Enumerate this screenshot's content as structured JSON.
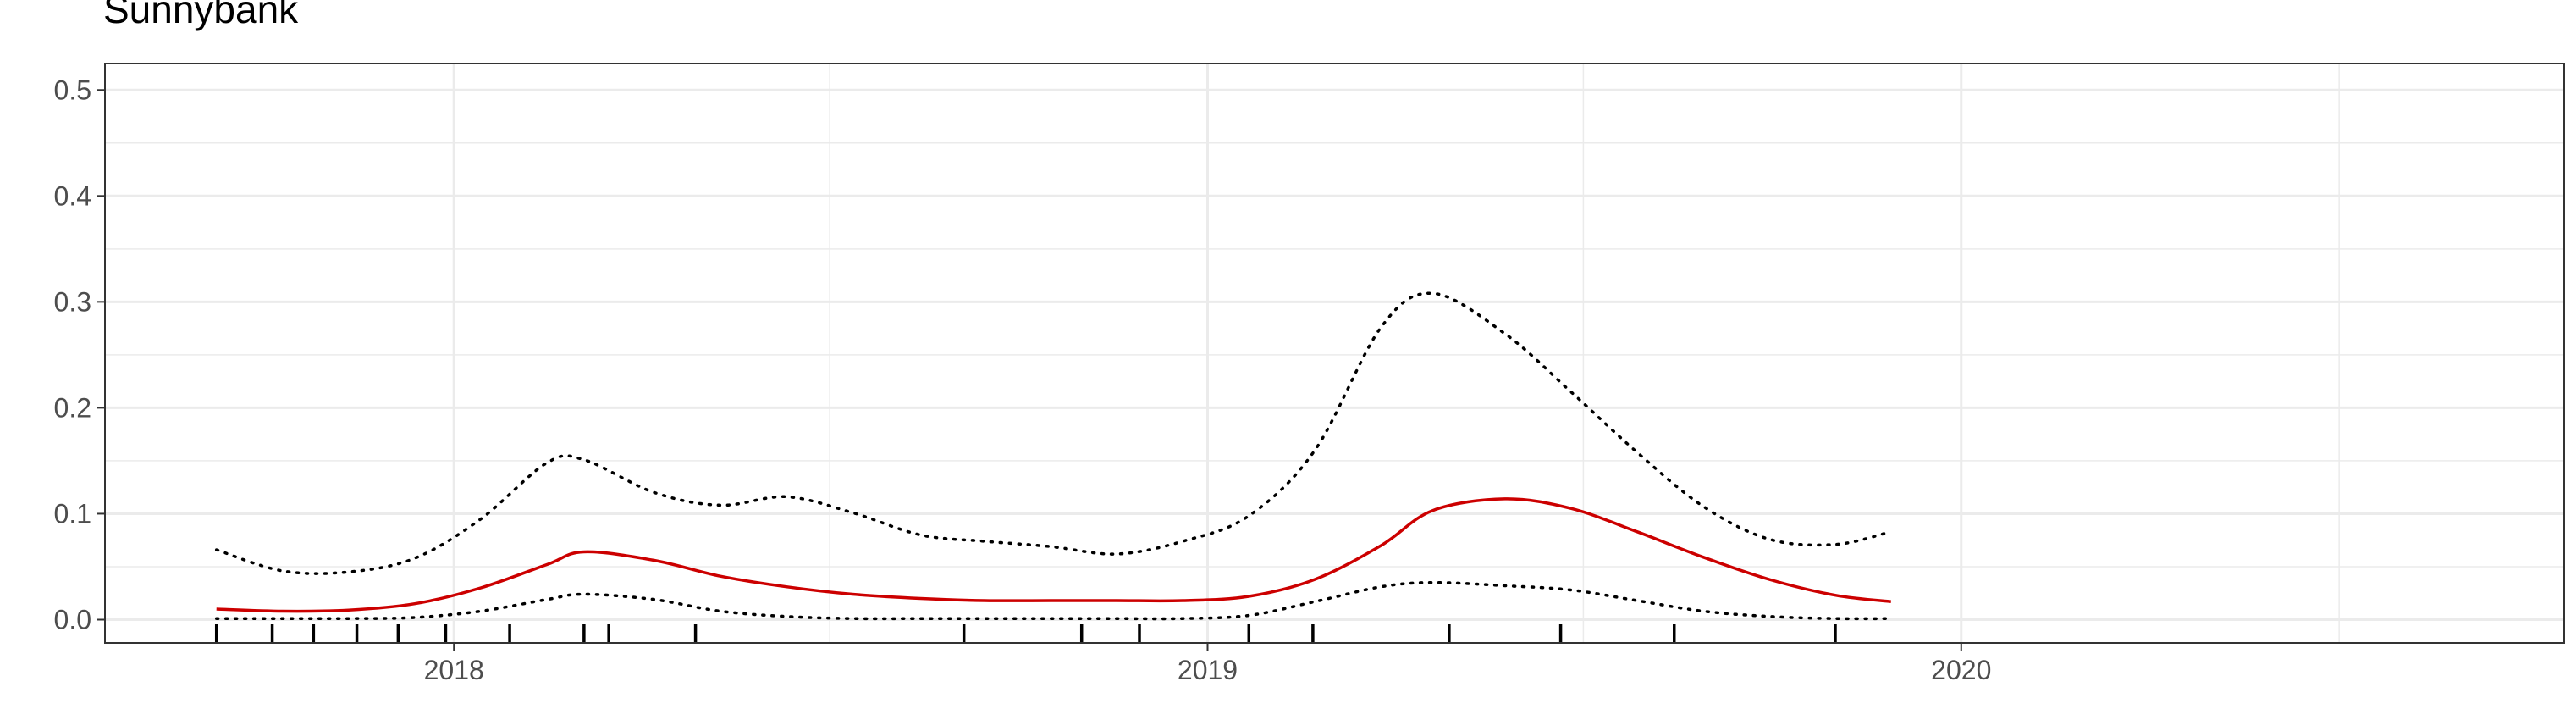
{
  "chart_data": {
    "type": "line",
    "title": "Sunnybank",
    "xlabel": "",
    "ylabel": "",
    "x_ticks": [
      "2018",
      "2019",
      "2020"
    ],
    "y_ticks": [
      "0.0",
      "0.1",
      "0.2",
      "0.3",
      "0.4",
      "0.5"
    ],
    "xlim": [
      "2017-07-16",
      "2020-10-19"
    ],
    "ylim": [
      -0.022,
      0.525
    ],
    "grid": true,
    "colors": {
      "estimate": "#cc0000",
      "bounds": "#000000"
    },
    "series": [
      {
        "style": "solid-red",
        "x": [
          "2017-09-08",
          "2017-10-10",
          "2017-11-11",
          "2017-12-13",
          "2018-01-14",
          "2018-02-15",
          "2018-03-05",
          "2018-04-08",
          "2018-05-10",
          "2018-06-11",
          "2018-07-13",
          "2018-08-15",
          "2018-09-15",
          "2018-10-17",
          "2018-11-18",
          "2018-12-20",
          "2019-01-21",
          "2019-02-22",
          "2019-03-26",
          "2019-04-20",
          "2019-05-25",
          "2019-06-26",
          "2019-07-28",
          "2019-08-29",
          "2019-09-30",
          "2019-11-01",
          "2019-11-28"
        ],
        "y": [
          0.01,
          0.008,
          0.009,
          0.015,
          0.03,
          0.052,
          0.064,
          0.056,
          0.041,
          0.031,
          0.024,
          0.02,
          0.018,
          0.018,
          0.018,
          0.018,
          0.022,
          0.038,
          0.07,
          0.103,
          0.114,
          0.105,
          0.083,
          0.059,
          0.038,
          0.023,
          0.017
        ]
      },
      {
        "style": "dotted-upper",
        "x": [
          "2017-09-08",
          "2017-10-10",
          "2017-11-11",
          "2017-12-13",
          "2018-01-14",
          "2018-02-15",
          "2018-03-05",
          "2018-04-08",
          "2018-05-10",
          "2018-06-11",
          "2018-07-13",
          "2018-08-15",
          "2018-09-15",
          "2018-10-17",
          "2018-11-18",
          "2018-12-20",
          "2019-01-21",
          "2019-02-22",
          "2019-03-26",
          "2019-04-20",
          "2019-05-25",
          "2019-06-26",
          "2019-07-28",
          "2019-08-29",
          "2019-09-30",
          "2019-11-01",
          "2019-11-28"
        ],
        "y": [
          0.066,
          0.046,
          0.045,
          0.058,
          0.095,
          0.148,
          0.151,
          0.12,
          0.108,
          0.116,
          0.101,
          0.08,
          0.074,
          0.069,
          0.062,
          0.074,
          0.098,
          0.16,
          0.276,
          0.308,
          0.27,
          0.215,
          0.158,
          0.107,
          0.076,
          0.071,
          0.083
        ]
      },
      {
        "style": "dotted-lower",
        "x": [
          "2017-09-08",
          "2017-10-10",
          "2017-11-11",
          "2017-12-13",
          "2018-01-14",
          "2018-02-15",
          "2018-03-05",
          "2018-04-08",
          "2018-05-10",
          "2018-06-11",
          "2018-07-13",
          "2018-08-15",
          "2018-09-15",
          "2018-10-17",
          "2018-11-18",
          "2018-12-20",
          "2019-01-21",
          "2019-02-22",
          "2019-03-26",
          "2019-04-20",
          "2019-05-25",
          "2019-06-26",
          "2019-07-28",
          "2019-08-29",
          "2019-09-30",
          "2019-11-01",
          "2019-11-28"
        ],
        "y": [
          0.001,
          0.001,
          0.001,
          0.002,
          0.008,
          0.019,
          0.024,
          0.019,
          0.008,
          0.003,
          0.001,
          0.001,
          0.001,
          0.001,
          0.001,
          0.001,
          0.004,
          0.017,
          0.031,
          0.035,
          0.032,
          0.028,
          0.018,
          0.008,
          0.003,
          0.001,
          0.001
        ]
      }
    ],
    "rug": [
      "2017-09-08",
      "2017-10-05",
      "2017-10-25",
      "2017-11-15",
      "2017-12-05",
      "2017-12-28",
      "2018-01-28",
      "2018-03-05",
      "2018-03-17",
      "2018-04-28",
      "2018-09-05",
      "2018-11-01",
      "2018-11-29",
      "2019-01-21",
      "2019-02-21",
      "2019-04-28",
      "2019-06-21",
      "2019-08-15",
      "2019-11-01"
    ]
  }
}
